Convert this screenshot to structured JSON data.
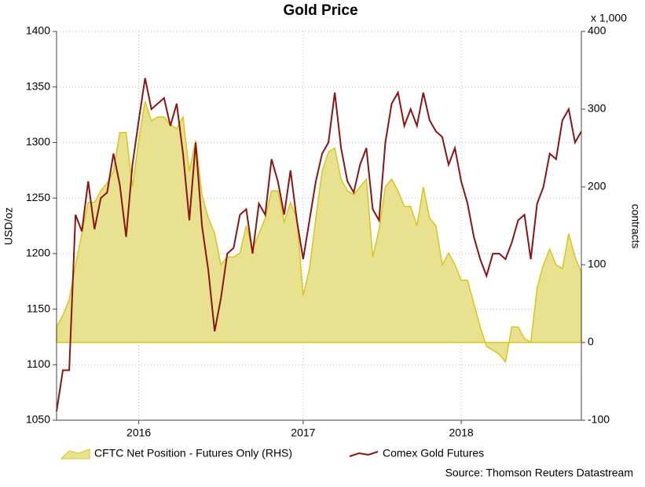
{
  "chart_data": {
    "type": "line-area",
    "title": "Gold Price",
    "ylabel": "USD/oz",
    "y2label": "contracts",
    "y2unit": "x 1,000",
    "source": "Source: Thomson Reuters Datastream",
    "categories": [
      null,
      null,
      null,
      null,
      null,
      null,
      null,
      null,
      null,
      null,
      null,
      null,
      null,
      "2016",
      null,
      null,
      null,
      null,
      null,
      null,
      null,
      null,
      null,
      null,
      null,
      null,
      null,
      null,
      null,
      null,
      null,
      null,
      null,
      null,
      null,
      null,
      null,
      null,
      null,
      "2017",
      null,
      null,
      null,
      null,
      null,
      null,
      null,
      null,
      null,
      null,
      null,
      null,
      null,
      null,
      null,
      null,
      null,
      null,
      null,
      null,
      null,
      null,
      null,
      null,
      "2018",
      null,
      null,
      null,
      null,
      null,
      null,
      null,
      null,
      null,
      null,
      null,
      null,
      null,
      null,
      null,
      null,
      null,
      null,
      null
    ],
    "ylim": [
      1050,
      1400
    ],
    "yticks": [
      1050,
      1100,
      1150,
      1200,
      1250,
      1300,
      1350,
      1400
    ],
    "y2lim": [
      -100,
      400
    ],
    "y2ticks": [
      -100,
      0,
      100,
      200,
      300,
      400
    ],
    "grid": true,
    "series": [
      {
        "name": "CFTC Net Position - Futures Only (RHS)",
        "kind": "area",
        "axis": "y2",
        "color": "#d9c61c",
        "fill": "#e8e18f",
        "values": [
          20,
          35,
          55,
          100,
          140,
          180,
          180,
          195,
          205,
          220,
          270,
          270,
          200,
          260,
          310,
          285,
          290,
          290,
          280,
          275,
          290,
          220,
          260,
          190,
          160,
          140,
          100,
          110,
          110,
          115,
          150,
          120,
          140,
          160,
          195,
          195,
          155,
          180,
          160,
          60,
          95,
          160,
          220,
          245,
          250,
          210,
          195,
          190,
          200,
          210,
          110,
          145,
          200,
          210,
          195,
          175,
          175,
          150,
          200,
          160,
          150,
          100,
          115,
          100,
          80,
          80,
          50,
          20,
          -5,
          -10,
          -15,
          -25,
          20,
          20,
          5,
          0,
          70,
          100,
          120,
          100,
          95,
          140,
          110,
          90
        ]
      },
      {
        "name": "Comex Gold Futures",
        "kind": "line",
        "axis": "y",
        "color": "#8b1414",
        "values": [
          1058,
          1095,
          1095,
          1235,
          1220,
          1265,
          1222,
          1250,
          1255,
          1290,
          1262,
          1215,
          1280,
          1320,
          1358,
          1330,
          1335,
          1340,
          1315,
          1335,
          1290,
          1230,
          1300,
          1225,
          1185,
          1130,
          1160,
          1200,
          1205,
          1235,
          1240,
          1200,
          1245,
          1235,
          1285,
          1265,
          1235,
          1275,
          1230,
          1195,
          1230,
          1265,
          1290,
          1300,
          1345,
          1295,
          1265,
          1255,
          1280,
          1295,
          1240,
          1230,
          1300,
          1335,
          1345,
          1315,
          1330,
          1315,
          1345,
          1320,
          1310,
          1305,
          1280,
          1295,
          1265,
          1245,
          1215,
          1195,
          1180,
          1200,
          1200,
          1195,
          1210,
          1230,
          1235,
          1195,
          1245,
          1260,
          1290,
          1285,
          1320,
          1330,
          1300,
          1310
        ]
      }
    ]
  }
}
